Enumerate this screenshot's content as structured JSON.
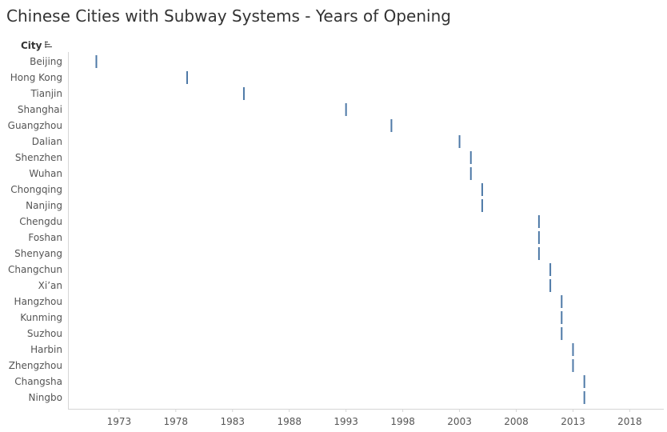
{
  "page": {
    "title": "Chinese Cities with Subway Systems - Years of Opening",
    "field_header": "City",
    "sort_icon": "sort-descending-icon"
  },
  "colors": {
    "mark": "#4e79a7",
    "axis": "#d6d6d6",
    "text": "#555555",
    "title": "#333333"
  },
  "chart_data": {
    "type": "scatter",
    "mark": "tick",
    "title": "Chinese Cities with Subway Systems - Years of Opening",
    "xlabel": "",
    "ylabel": "City",
    "xlim": [
      1968.5,
      2021
    ],
    "xticks": [
      1973,
      1978,
      1983,
      1988,
      1993,
      1998,
      2003,
      2008,
      2013,
      2018
    ],
    "grid": false,
    "categories": [
      "Beijing",
      "Hong Kong",
      "Tianjin",
      "Shanghai",
      "Guangzhou",
      "Dalian",
      "Shenzhen",
      "Wuhan",
      "Chongqing",
      "Nanjing",
      "Chengdu",
      "Foshan",
      "Shenyang",
      "Changchun",
      "Xi’an",
      "Hangzhou",
      "Kunming",
      "Suzhou",
      "Harbin",
      "Zhengzhou",
      "Changsha",
      "Ningbo"
    ],
    "values": [
      1971,
      1979,
      1984,
      1993,
      1997,
      2003,
      2004,
      2004,
      2005,
      2005,
      2010,
      2010,
      2010,
      2011,
      2011,
      2012,
      2012,
      2012,
      2013,
      2013,
      2014,
      2014
    ]
  }
}
